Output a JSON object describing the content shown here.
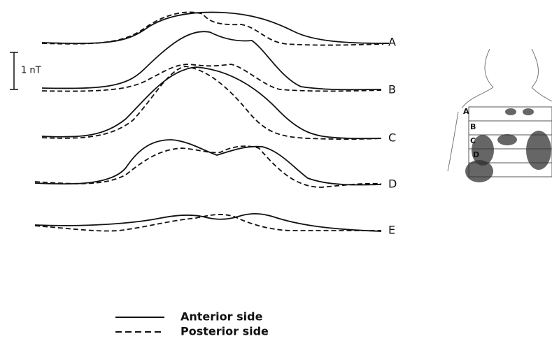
{
  "scale_label": "1 nT",
  "traces": [
    {
      "label": "A"
    },
    {
      "label": "B"
    },
    {
      "label": "C"
    },
    {
      "label": "D"
    },
    {
      "label": "E"
    }
  ],
  "legend": [
    {
      "label": "Anterior side"
    },
    {
      "label": "Posterior side"
    }
  ],
  "torso_labels": [
    "A",
    "B",
    "C",
    "D"
  ]
}
